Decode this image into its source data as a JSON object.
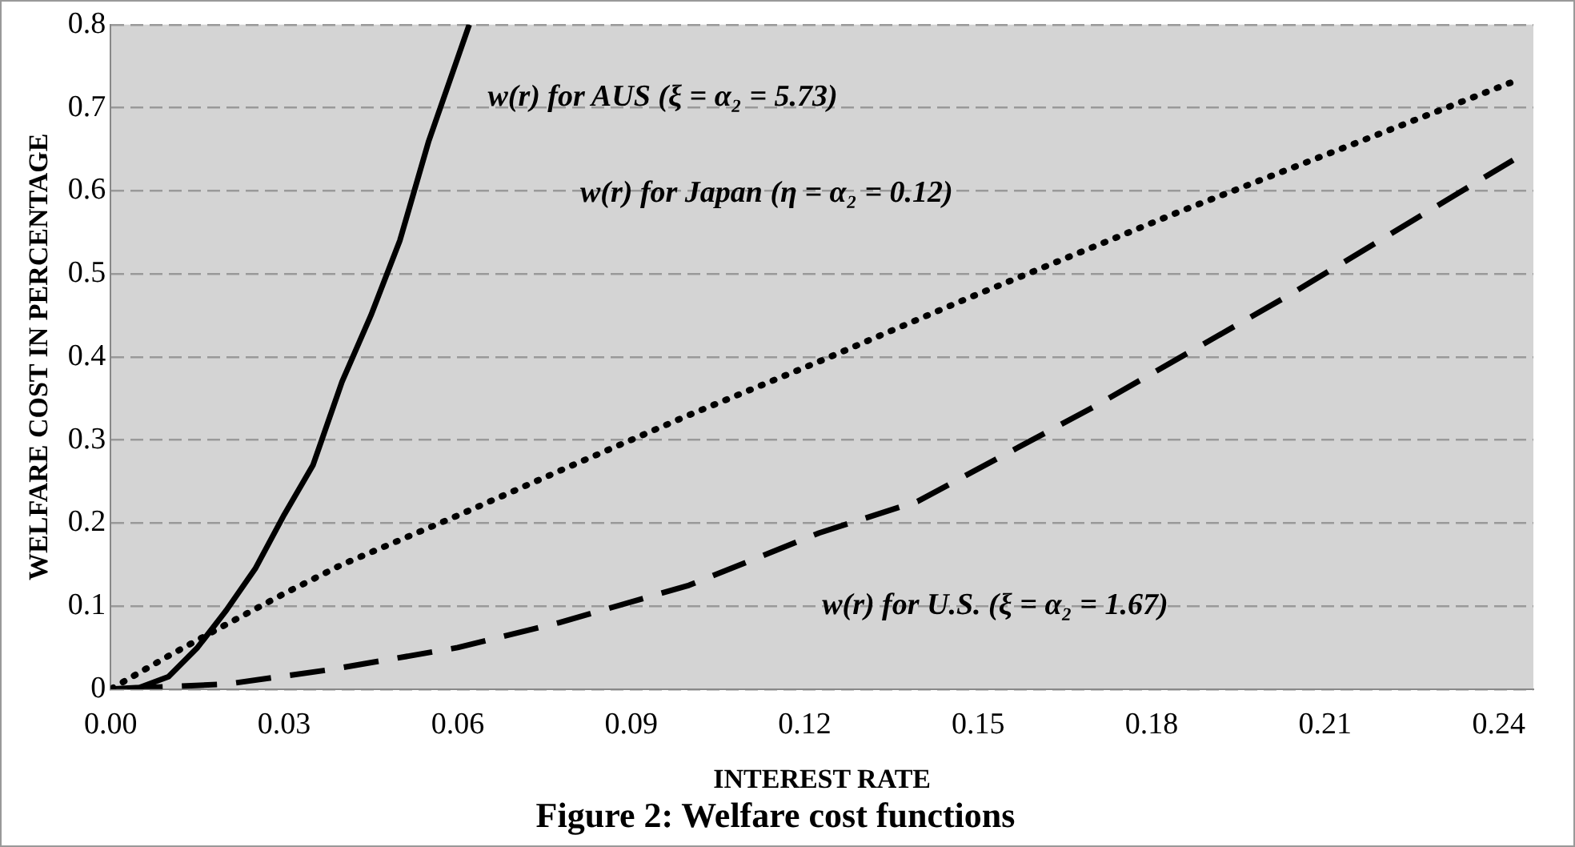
{
  "chart_data": {
    "type": "line",
    "title": "Figure 2: Welfare cost functions",
    "xlabel": "INTEREST RATE",
    "ylabel": "WELFARE COST IN PERCENTAGE",
    "xlim": [
      0,
      0.246
    ],
    "xticks": [
      {
        "value": 0,
        "label": "0.00"
      },
      {
        "value": 0.03,
        "label": "0.03"
      },
      {
        "value": 0.06,
        "label": "0.06"
      },
      {
        "value": 0.09,
        "label": "0.09"
      },
      {
        "value": 0.12,
        "label": "0.12"
      },
      {
        "value": 0.15,
        "label": "0.15"
      },
      {
        "value": 0.18,
        "label": "0.18"
      },
      {
        "value": 0.21,
        "label": "0.21"
      },
      {
        "value": 0.24,
        "label": "0.24"
      }
    ],
    "ylim": [
      0,
      0.8
    ],
    "yticks": [
      0,
      0.1,
      0.2,
      0.3,
      0.4,
      0.5,
      0.6,
      0.7,
      0.8
    ],
    "grid": "y",
    "legend": false,
    "marker": "none",
    "series": [
      {
        "color": "#000000",
        "line_style": "solid",
        "x": [
          0,
          0.005,
          0.01,
          0.015,
          0.02,
          0.025,
          0.03,
          0.035,
          0.04,
          0.045,
          0.05,
          0.055,
          0.06,
          0.062
        ],
        "values": [
          0,
          0.002,
          0.015,
          0.05,
          0.095,
          0.145,
          0.21,
          0.27,
          0.37,
          0.45,
          0.54,
          0.66,
          0.76,
          0.8
        ]
      },
      {
        "color": "#000000",
        "line_style": "dotted",
        "x": [
          0,
          0.005,
          0.01,
          0.02,
          0.03,
          0.04,
          0.06,
          0.08,
          0.1,
          0.122,
          0.148,
          0.1845,
          0.2155,
          0.242
        ],
        "values": [
          0,
          0.02,
          0.04,
          0.078,
          0.115,
          0.15,
          0.209,
          0.27,
          0.33,
          0.393,
          0.47,
          0.574,
          0.658,
          0.73
        ]
      },
      {
        "color": "#000000",
        "line_style": "dashed",
        "x": [
          0,
          0.02,
          0.0375,
          0.06,
          0.0775,
          0.1,
          0.1225,
          0.1395,
          0.1695,
          0.2044,
          0.2425
        ],
        "values": [
          0,
          0.006,
          0.023,
          0.05,
          0.08,
          0.125,
          0.188,
          0.226,
          0.338,
          0.477,
          0.637
        ]
      }
    ],
    "annotations": [
      "w(r) for AUS (ξ = α₂ = 5.73)",
      "w(r) for Japan (η = α₂ = 0.12)",
      "w(r) for U.S. (ξ = α₂ = 1.67)"
    ]
  }
}
